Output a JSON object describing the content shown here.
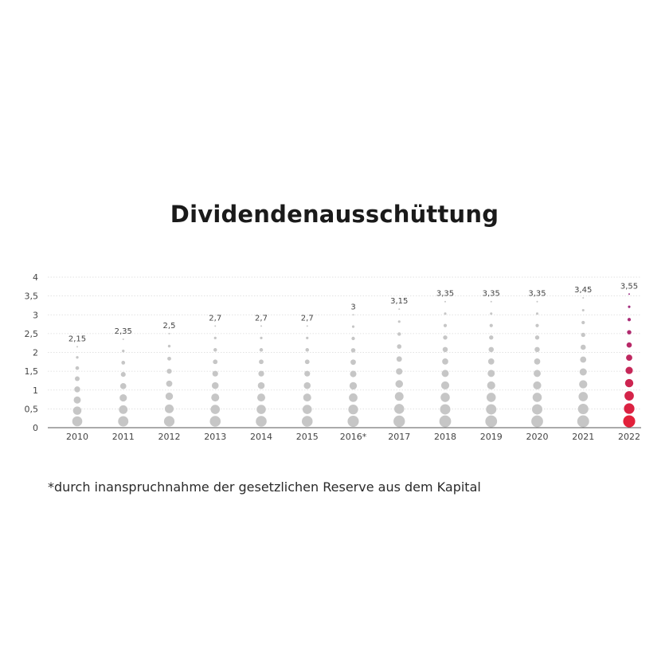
{
  "chart_data": {
    "type": "scatter",
    "title": "Dividendenausschüttung",
    "categories": [
      "2010",
      "2011",
      "2012",
      "2013",
      "2014",
      "2015",
      "2016*",
      "2017",
      "2018",
      "2019",
      "2020",
      "2021",
      "2022"
    ],
    "values": [
      2.15,
      2.35,
      2.5,
      2.7,
      2.7,
      2.7,
      3,
      3.15,
      3.35,
      3.35,
      3.35,
      3.45,
      3.55
    ],
    "value_labels": [
      "2,15",
      "2,35",
      "2,5",
      "2,7",
      "2,7",
      "2,7",
      "3",
      "3,15",
      "3,35",
      "3,35",
      "3,35",
      "3,45",
      "3,55"
    ],
    "ylim": [
      0,
      4
    ],
    "yticks": [
      "0",
      "0,5",
      "1",
      "1,5",
      "2",
      "2,5",
      "3",
      "3,5",
      "4"
    ],
    "xlabel": "",
    "ylabel": "",
    "grid": true,
    "colors": {
      "neutral": "#c6c6c6",
      "highlight_bottom": "#e2213a",
      "highlight_top": "#9c2f86"
    }
  },
  "footnote": "*durch inanspruchnahme der gesetzlichen Reserve aus dem Kapital"
}
